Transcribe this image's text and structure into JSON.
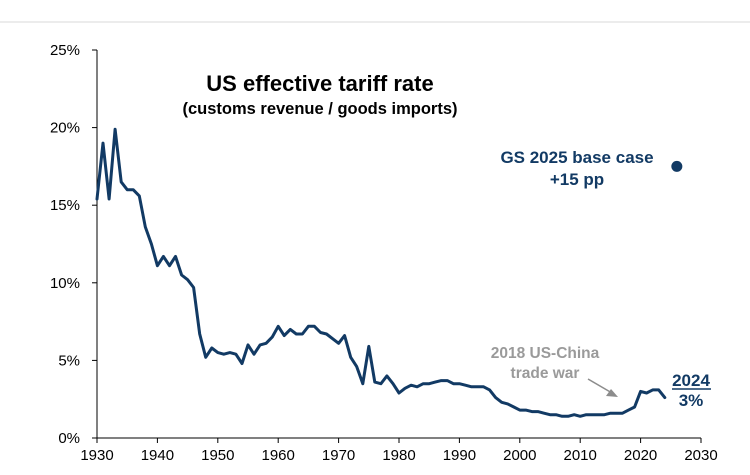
{
  "colors": {
    "series": "#123a64",
    "annotation_gray": "#9a9a9a",
    "axis": "#000000",
    "top_rule": "#d9d9d9"
  },
  "chart_data": {
    "type": "line",
    "title": "US effective tariff rate",
    "subtitle": "(customs revenue / goods imports)",
    "xlabel": "",
    "ylabel": "",
    "xlim": [
      1930,
      2030
    ],
    "ylim": [
      0,
      25
    ],
    "x_ticks": [
      1930,
      1940,
      1950,
      1960,
      1970,
      1980,
      1990,
      2000,
      2010,
      2020,
      2030
    ],
    "x_tick_labels": [
      "1930",
      "1940",
      "1950",
      "1960",
      "1970",
      "1980",
      "1990",
      "2000",
      "2010",
      "2020",
      "2030"
    ],
    "y_ticks": [
      0,
      5,
      10,
      15,
      20,
      25
    ],
    "y_tick_labels": [
      "0%",
      "5%",
      "10%",
      "15%",
      "20%",
      "25%"
    ],
    "grid": false,
    "series": [
      {
        "name": "US effective tariff rate",
        "x": [
          1930,
          1931,
          1932,
          1933,
          1934,
          1935,
          1936,
          1937,
          1938,
          1939,
          1940,
          1941,
          1942,
          1943,
          1944,
          1945,
          1946,
          1947,
          1948,
          1949,
          1950,
          1951,
          1952,
          1953,
          1954,
          1955,
          1956,
          1957,
          1958,
          1959,
          1960,
          1961,
          1962,
          1963,
          1964,
          1965,
          1966,
          1967,
          1968,
          1969,
          1970,
          1971,
          1972,
          1973,
          1974,
          1975,
          1976,
          1977,
          1978,
          1979,
          1980,
          1981,
          1982,
          1983,
          1984,
          1985,
          1986,
          1987,
          1988,
          1989,
          1990,
          1991,
          1992,
          1993,
          1994,
          1995,
          1996,
          1997,
          1998,
          1999,
          2000,
          2001,
          2002,
          2003,
          2004,
          2005,
          2006,
          2007,
          2008,
          2009,
          2010,
          2011,
          2012,
          2013,
          2014,
          2015,
          2016,
          2017,
          2018,
          2019,
          2020,
          2021,
          2022,
          2023,
          2024
        ],
        "values": [
          15.4,
          19.0,
          15.4,
          19.9,
          16.5,
          16.0,
          16.0,
          15.6,
          13.6,
          12.5,
          11.1,
          11.7,
          11.1,
          11.7,
          10.5,
          10.2,
          9.7,
          6.7,
          5.2,
          5.8,
          5.5,
          5.4,
          5.5,
          5.4,
          4.8,
          6.0,
          5.4,
          6.0,
          6.1,
          6.5,
          7.2,
          6.6,
          7.0,
          6.7,
          6.7,
          7.2,
          7.2,
          6.8,
          6.7,
          6.4,
          6.1,
          6.6,
          5.2,
          4.6,
          3.5,
          5.9,
          3.6,
          3.5,
          4.0,
          3.5,
          2.9,
          3.2,
          3.4,
          3.3,
          3.5,
          3.5,
          3.6,
          3.7,
          3.7,
          3.5,
          3.5,
          3.4,
          3.3,
          3.3,
          3.3,
          3.1,
          2.6,
          2.3,
          2.2,
          2.0,
          1.8,
          1.8,
          1.7,
          1.7,
          1.6,
          1.5,
          1.5,
          1.4,
          1.4,
          1.5,
          1.4,
          1.5,
          1.5,
          1.5,
          1.5,
          1.6,
          1.6,
          1.6,
          1.8,
          2.0,
          3.0,
          2.9,
          3.1,
          3.1,
          2.6
        ]
      }
    ],
    "points": [
      {
        "name": "GS 2025 base case",
        "x": 2026,
        "y": 17.5
      }
    ],
    "annotations": {
      "base_case_line1": "GS 2025 base case",
      "base_case_line2": "+15 pp",
      "trade_war_line1": "2018 US-China",
      "trade_war_line2": "trade war",
      "end_year": "2024",
      "end_value": "3%"
    }
  }
}
